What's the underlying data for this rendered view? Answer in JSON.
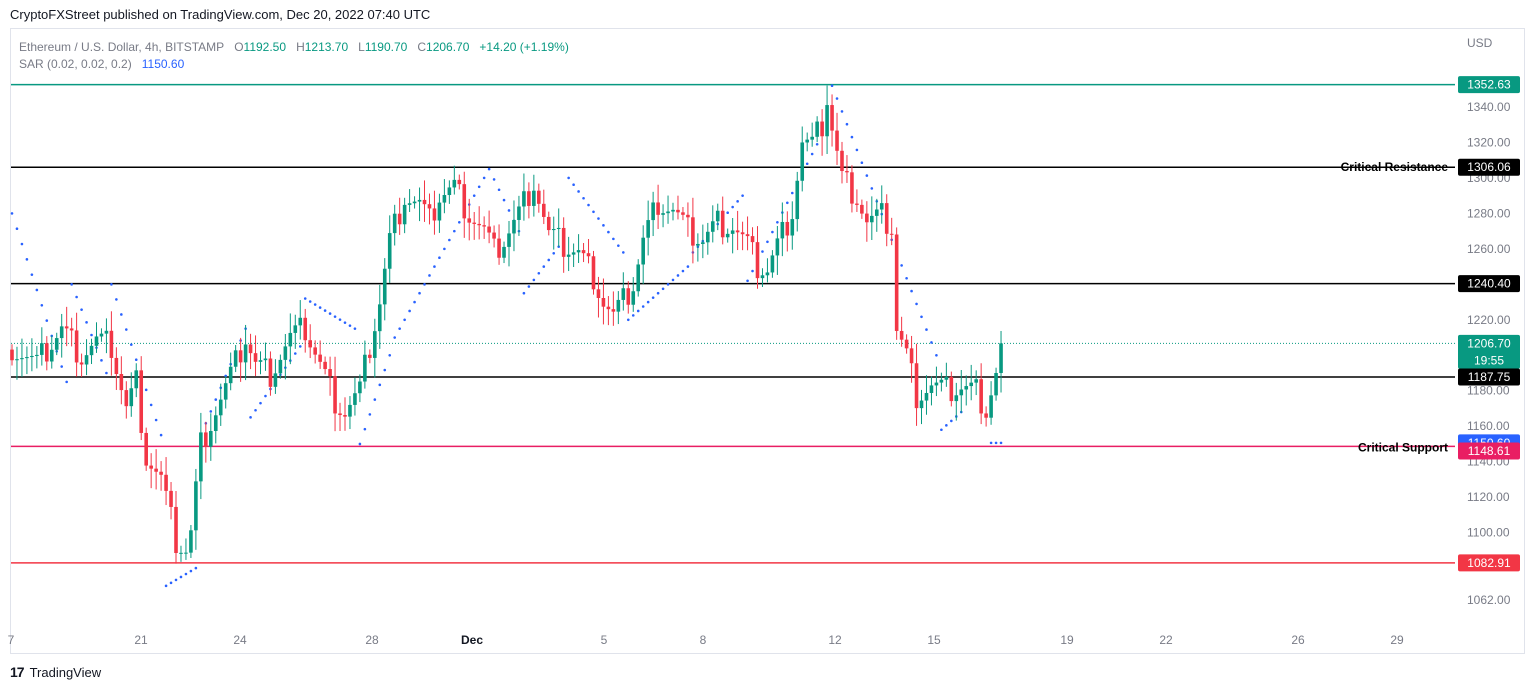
{
  "header": {
    "publisher_line": "CryptoFXStreet published on TradingView.com, Dec 20, 2022 07:40 UTC"
  },
  "legend": {
    "symbol": "Ethereum / U.S. Dollar, 4h, BITSTAMP",
    "open_label": "O",
    "open": "1192.50",
    "high_label": "H",
    "high": "1213.70",
    "low_label": "L",
    "low": "1190.70",
    "close_label": "C",
    "close": "1206.70",
    "change": "+14.20 (+1.19%)",
    "indicator": "SAR (0.02, 0.02, 0.2)",
    "indicator_value": "1150.60"
  },
  "currency": "USD",
  "footer": {
    "brand": "TradingView",
    "logo": "17"
  },
  "colors": {
    "up": "#089981",
    "down": "#f23645",
    "sar": "#2962ff",
    "resistance": "#000000",
    "support_pink": "#e91e63",
    "low_red": "#f23645",
    "top_teal": "#089981"
  },
  "chart_data": {
    "type": "candlestick",
    "title": "Ethereum / U.S. Dollar, 4h, BITSTAMP",
    "ylim": [
      1045,
      1362
    ],
    "y_ticks": [
      "1062.00",
      "1100.00",
      "1120.00",
      "1140.00",
      "1160.00",
      "1180.00",
      "1200.00",
      "1220.00",
      "1240.00",
      "1260.00",
      "1280.00",
      "1300.00",
      "1320.00",
      "1340.00"
    ],
    "x_ticks": [
      "7",
      "21",
      "24",
      "28",
      "Dec",
      "5",
      "8",
      "12",
      "15",
      "19",
      "22",
      "26",
      "29"
    ],
    "horizontal_levels": [
      {
        "value": 1352.63,
        "label": "1352.63",
        "color": "#089981",
        "text": ""
      },
      {
        "value": 1306.06,
        "label": "1306.06",
        "color": "#000000",
        "text": "Critical Resistance"
      },
      {
        "value": 1240.4,
        "label": "1240.40",
        "color": "#000000",
        "text": ""
      },
      {
        "value": 1187.75,
        "label": "1187.75",
        "color": "#000000",
        "text": ""
      },
      {
        "value": 1150.6,
        "label": "1150.60",
        "color": "#2962ff",
        "text": "Critical Support"
      },
      {
        "value": 1148.61,
        "label": "1148.61",
        "color": "#e91e63",
        "text": ""
      },
      {
        "value": 1082.91,
        "label": "1082.91",
        "color": "#f23645",
        "text": ""
      }
    ],
    "last_price": {
      "value": 1206.7,
      "label": "1206.70",
      "countdown": "19:55"
    },
    "close_path": [
      [
        0,
        1205
      ],
      [
        5,
        1195
      ],
      [
        10,
        1215
      ],
      [
        14,
        1200
      ],
      [
        17,
        1208
      ],
      [
        20,
        1205
      ],
      [
        23,
        1170
      ],
      [
        25,
        1185
      ],
      [
        27,
        1143
      ],
      [
        30,
        1130
      ],
      [
        33,
        1095
      ],
      [
        35,
        1090
      ],
      [
        36,
        1100
      ],
      [
        38,
        1150
      ],
      [
        42,
        1175
      ],
      [
        45,
        1195
      ],
      [
        47,
        1210
      ],
      [
        49,
        1195
      ],
      [
        52,
        1190
      ],
      [
        56,
        1210
      ],
      [
        59,
        1215
      ],
      [
        62,
        1195
      ],
      [
        65,
        1175
      ],
      [
        67,
        1168
      ],
      [
        70,
        1180
      ],
      [
        72,
        1205
      ],
      [
        74,
        1230
      ],
      [
        76,
        1265
      ],
      [
        79,
        1290
      ],
      [
        82,
        1285
      ],
      [
        84,
        1275
      ],
      [
        86,
        1290
      ],
      [
        89,
        1295
      ],
      [
        92,
        1280
      ],
      [
        95,
        1270
      ],
      [
        97,
        1258
      ],
      [
        99,
        1265
      ],
      [
        102,
        1280
      ],
      [
        105,
        1298
      ],
      [
        108,
        1268
      ],
      [
        111,
        1262
      ],
      [
        114,
        1258
      ],
      [
        117,
        1245
      ],
      [
        119,
        1230
      ],
      [
        121,
        1222
      ],
      [
        123,
        1230
      ],
      [
        125,
        1240
      ],
      [
        127,
        1265
      ],
      [
        130,
        1287
      ],
      [
        133,
        1282
      ],
      [
        136,
        1270
      ],
      [
        139,
        1265
      ],
      [
        142,
        1275
      ],
      [
        145,
        1273
      ],
      [
        148,
        1262
      ],
      [
        150,
        1250
      ],
      [
        152,
        1248
      ],
      [
        154,
        1262
      ],
      [
        157,
        1282
      ],
      [
        159,
        1320
      ],
      [
        161,
        1318
      ],
      [
        163,
        1330
      ],
      [
        164,
        1345
      ],
      [
        165,
        1328
      ],
      [
        167,
        1300
      ],
      [
        170,
        1290
      ],
      [
        172,
        1275
      ],
      [
        175,
        1278
      ],
      [
        177,
        1272
      ],
      [
        178,
        1215
      ],
      [
        180,
        1200
      ],
      [
        182,
        1178
      ],
      [
        185,
        1183
      ],
      [
        188,
        1180
      ],
      [
        191,
        1182
      ],
      [
        194,
        1180
      ],
      [
        196,
        1170
      ],
      [
        198,
        1190
      ],
      [
        199,
        1206.7
      ]
    ],
    "sar_segments": [
      {
        "start": 0,
        "end": 11,
        "from": 1280,
        "to": 1185
      },
      {
        "start": 12,
        "end": 19,
        "from": 1240,
        "to": 1190
      },
      {
        "start": 20,
        "end": 30,
        "from": 1240,
        "to": 1155
      },
      {
        "start": 31,
        "end": 37,
        "from": 1070,
        "to": 1080
      },
      {
        "start": 38,
        "end": 47,
        "from": 1155,
        "to": 1215
      },
      {
        "start": 48,
        "end": 58,
        "from": 1165,
        "to": 1205
      },
      {
        "start": 59,
        "end": 69,
        "from": 1232,
        "to": 1215
      },
      {
        "start": 70,
        "end": 76,
        "from": 1150,
        "to": 1200
      },
      {
        "start": 77,
        "end": 95,
        "from": 1210,
        "to": 1300
      },
      {
        "start": 96,
        "end": 102,
        "from": 1305,
        "to": 1270
      },
      {
        "start": 103,
        "end": 111,
        "from": 1235,
        "to": 1265
      },
      {
        "start": 112,
        "end": 123,
        "from": 1300,
        "to": 1258
      },
      {
        "start": 124,
        "end": 136,
        "from": 1220,
        "to": 1250
      },
      {
        "start": 137,
        "end": 147,
        "from": 1258,
        "to": 1290
      },
      {
        "start": 148,
        "end": 164,
        "from": 1242,
        "to": 1330
      },
      {
        "start": 165,
        "end": 186,
        "from": 1352,
        "to": 1200
      },
      {
        "start": 187,
        "end": 191,
        "from": 1158,
        "to": 1168
      },
      {
        "start": 197,
        "end": 199,
        "from": 1150.6,
        "to": 1150.6
      }
    ]
  }
}
